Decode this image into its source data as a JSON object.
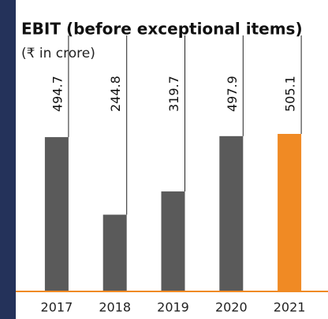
{
  "chart_data": {
    "type": "bar",
    "title": "EBIT (before exceptional items)",
    "subtitle": "(₹ in crore)",
    "categories": [
      "2017",
      "2018",
      "2019",
      "2020",
      "2021"
    ],
    "values": [
      494.7,
      244.8,
      319.7,
      497.9,
      505.1
    ],
    "colors": [
      "#5a5a5a",
      "#5a5a5a",
      "#5a5a5a",
      "#5a5a5a",
      "#f08a24"
    ],
    "baseline_color": "#f08a24"
  }
}
